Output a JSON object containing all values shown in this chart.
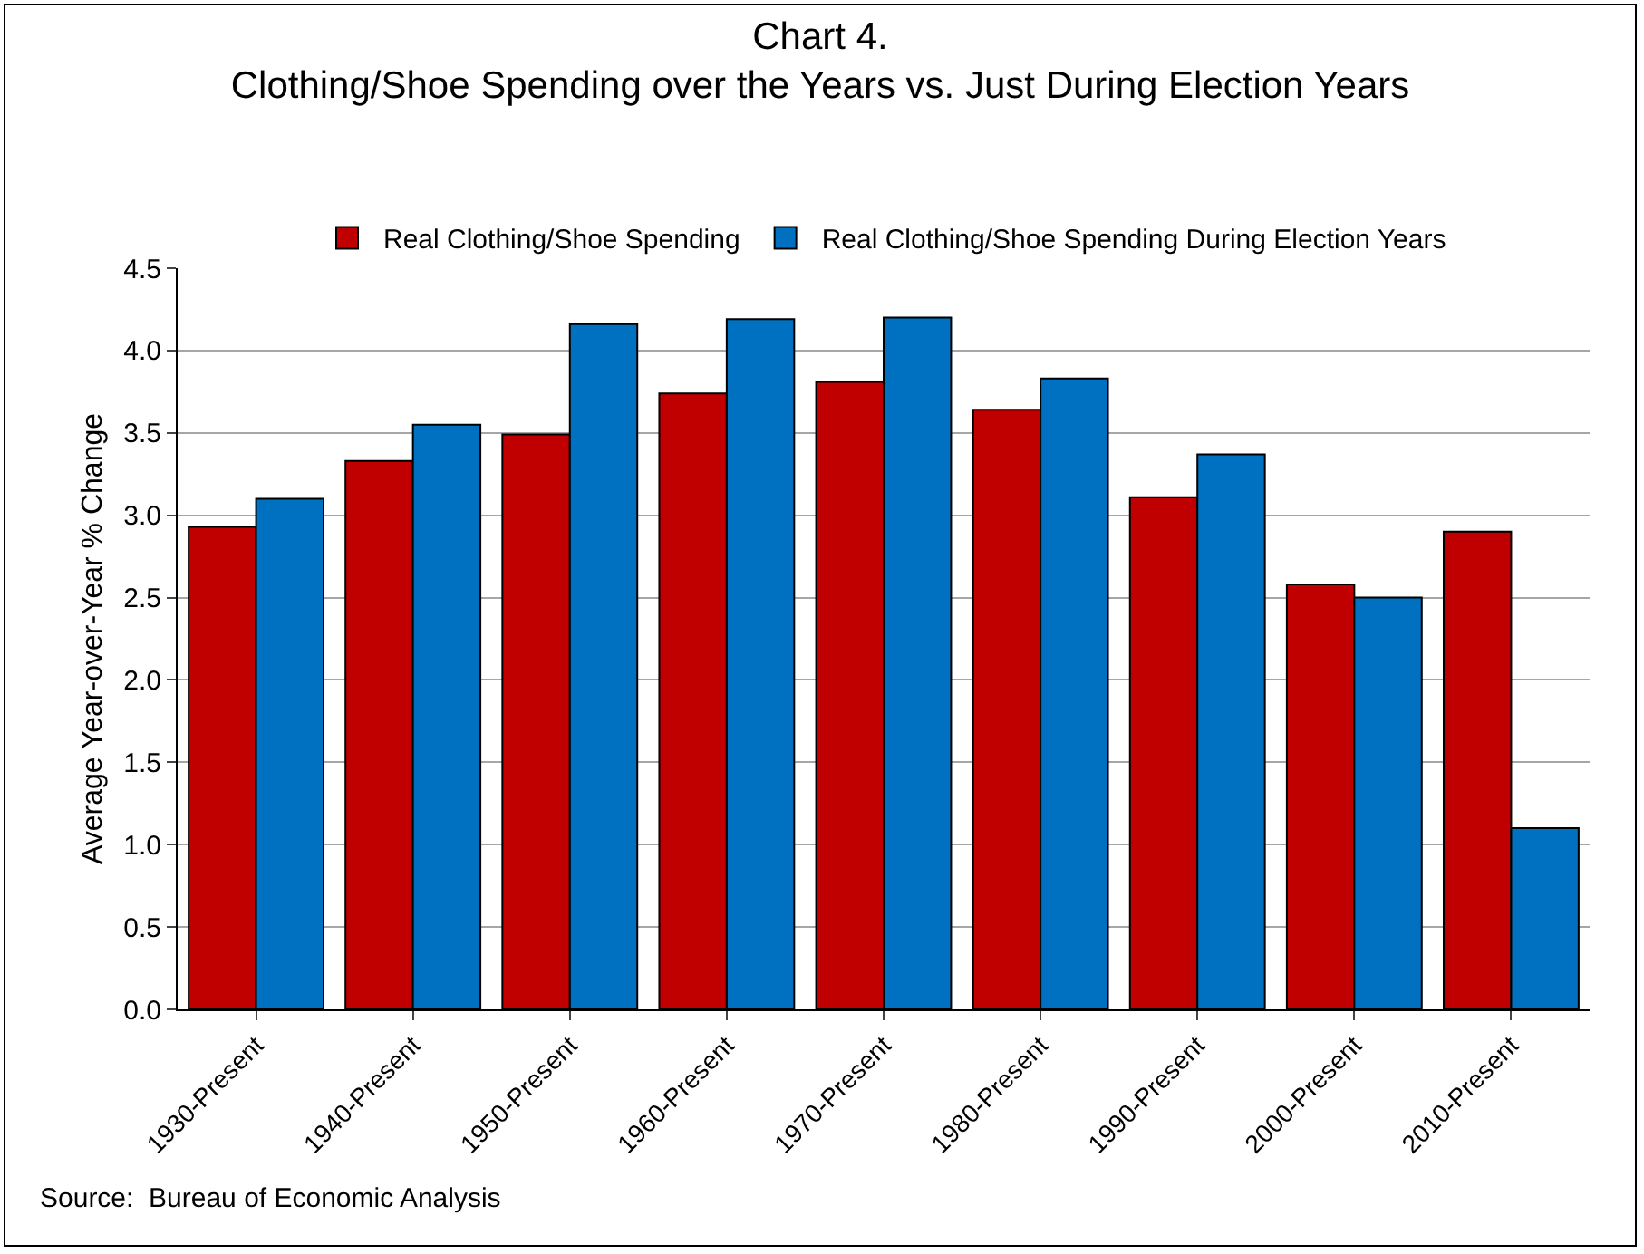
{
  "chart_data": {
    "type": "bar",
    "title": "Chart 4.",
    "subtitle": "Clothing/Shoe Spending over the Years vs. Just During Election Years",
    "ylabel": "Average Year-over-Year % Change",
    "categories": [
      "1930-Present",
      "1940-Present",
      "1950-Present",
      "1960-Present",
      "1970-Present",
      "1980-Present",
      "1990-Present",
      "2000-Present",
      "2010-Present"
    ],
    "series": [
      {
        "name": "Real Clothing/Shoe Spending",
        "color": "#c00000",
        "values": [
          2.93,
          3.33,
          3.49,
          3.74,
          3.81,
          3.64,
          3.11,
          2.58,
          2.9
        ]
      },
      {
        "name": "Real Clothing/Shoe Spending During Election Years",
        "color": "#0070c0",
        "values": [
          3.1,
          3.55,
          4.16,
          4.19,
          4.2,
          3.83,
          3.37,
          2.5,
          1.1
        ]
      }
    ],
    "ylim": [
      0,
      4.5
    ],
    "yticks": [
      {
        "value": 0,
        "label": "0.0"
      },
      {
        "value": 0.5,
        "label": "0.5"
      },
      {
        "value": 1,
        "label": "1.0"
      },
      {
        "value": 1.5,
        "label": "1.5"
      },
      {
        "value": 2,
        "label": "2.0"
      },
      {
        "value": 2.5,
        "label": "2.5"
      },
      {
        "value": 3,
        "label": "3.0"
      },
      {
        "value": 3.5,
        "label": "3.5"
      },
      {
        "value": 4,
        "label": "4.0"
      },
      {
        "value": 4.5,
        "label": "4.5"
      }
    ],
    "grid": "y",
    "legend": "top",
    "annotations": [
      "Source:  Bureau of Economic Analysis"
    ]
  }
}
